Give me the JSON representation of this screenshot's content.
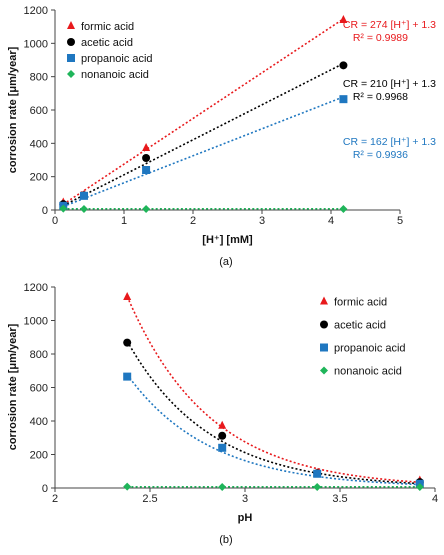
{
  "chart_data": [
    {
      "type": "scatter",
      "caption": "(a)",
      "xlabel": "[H⁺] [mM]",
      "ylabel": "corrosion rate [μm/year]",
      "xlim": [
        0,
        5
      ],
      "ylim": [
        0,
        1200
      ],
      "xticks": [
        0,
        1,
        2,
        3,
        4,
        5
      ],
      "yticks": [
        0,
        200,
        400,
        600,
        800,
        1000,
        1200
      ],
      "legend_position": "top-left",
      "series": [
        {
          "name": "formic acid",
          "marker": "triangle",
          "color": "#e8191c",
          "x": [
            0.12,
            0.42,
            1.32,
            4.18
          ],
          "y": [
            45,
            90,
            372,
            1140
          ],
          "fit": {
            "slope": 274,
            "intercept": 1.3,
            "x_range": [
              0.12,
              4.18
            ]
          },
          "equation": "CR = 274 [H⁺] + 1.3",
          "r2": "R² = 0.9989"
        },
        {
          "name": "acetic acid",
          "marker": "circle",
          "color": "#000000",
          "x": [
            0.12,
            0.42,
            1.32,
            4.18
          ],
          "y": [
            35,
            88,
            312,
            868
          ],
          "fit": {
            "slope": 210,
            "intercept": 1.3,
            "x_range": [
              0.12,
              4.18
            ]
          },
          "equation": "CR = 210 [H⁺] + 1.3",
          "r2": "R² = 0.9968"
        },
        {
          "name": "propanoic acid",
          "marker": "square",
          "color": "#1f77c0",
          "x": [
            0.12,
            0.42,
            1.32,
            4.18
          ],
          "y": [
            25,
            85,
            240,
            665
          ],
          "fit": {
            "slope": 162,
            "intercept": 1.3,
            "x_range": [
              0.12,
              4.18
            ]
          },
          "equation": "CR = 162 [H⁺] + 1.3",
          "r2": "R² = 0.9936"
        },
        {
          "name": "nonanoic acid",
          "marker": "diamond",
          "color": "#1fb55a",
          "x": [
            0.12,
            0.42,
            1.32,
            4.18
          ],
          "y": [
            8,
            6,
            6,
            6
          ],
          "fit": {
            "slope": 0,
            "intercept": 7,
            "x_range": [
              0.12,
              4.18
            ]
          }
        }
      ]
    },
    {
      "type": "scatter",
      "caption": "(b)",
      "xlabel": "pH",
      "ylabel": "corrosion rate [μm/year]",
      "xlim": [
        2,
        4
      ],
      "ylim": [
        0,
        1200
      ],
      "xticks": [
        2,
        2.5,
        3,
        3.5,
        4
      ],
      "xtick_labels": [
        "2",
        "2.5",
        "3",
        "3.5",
        "4"
      ],
      "yticks": [
        0,
        200,
        400,
        600,
        800,
        1000,
        1200
      ],
      "legend_position": "top-right",
      "series": [
        {
          "name": "formic acid",
          "marker": "triangle",
          "color": "#e8191c",
          "x": [
            2.38,
            2.88,
            3.38,
            3.92
          ],
          "y": [
            1140,
            372,
            90,
            45
          ],
          "fit": {
            "slope": 274,
            "intercept": 1.3,
            "x_range": [
              2.38,
              3.92
            ]
          }
        },
        {
          "name": "acetic acid",
          "marker": "circle",
          "color": "#000000",
          "x": [
            2.38,
            2.88,
            3.38,
            3.92
          ],
          "y": [
            868,
            312,
            88,
            35
          ],
          "fit": {
            "slope": 210,
            "intercept": 1.3,
            "x_range": [
              2.38,
              3.92
            ]
          }
        },
        {
          "name": "propanoic acid",
          "marker": "square",
          "color": "#1f77c0",
          "x": [
            2.38,
            2.88,
            3.38,
            3.92
          ],
          "y": [
            665,
            240,
            85,
            25
          ],
          "fit": {
            "slope": 162,
            "intercept": 1.3,
            "x_range": [
              2.38,
              3.92
            ]
          }
        },
        {
          "name": "nonanoic acid",
          "marker": "diamond",
          "color": "#1fb55a",
          "x": [
            2.38,
            2.88,
            3.38,
            3.92
          ],
          "y": [
            8,
            6,
            6,
            6
          ],
          "fit": {
            "slope": 0,
            "intercept": 7,
            "x_range": [
              2.38,
              3.92
            ]
          }
        }
      ]
    }
  ]
}
